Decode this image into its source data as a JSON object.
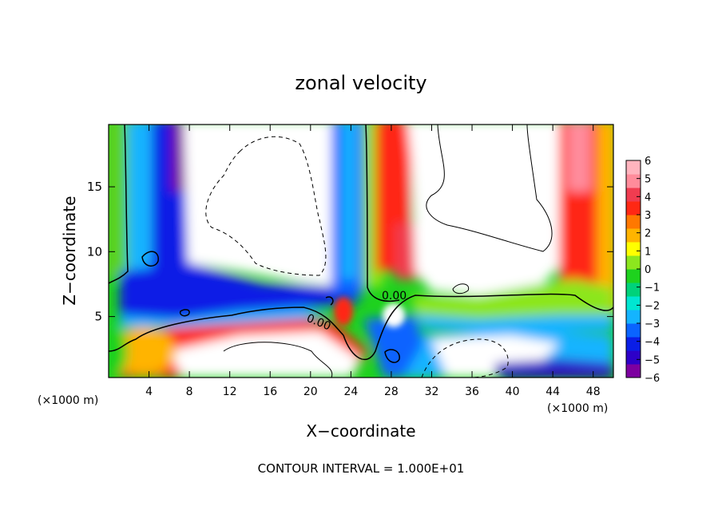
{
  "chart_data": {
    "type": "heatmap",
    "title": "zonal velocity",
    "xlabel": "X−coordinate",
    "ylabel": "Z−coordinate",
    "x_unit_left": "(×1000 m)",
    "x_unit_right": "(×1000 m)",
    "xlim": [
      0,
      50
    ],
    "ylim": [
      0.3,
      19.8
    ],
    "x_ticks": [
      {
        "v": 4,
        "label": "4"
      },
      {
        "v": 8,
        "label": "8"
      },
      {
        "v": 12,
        "label": "12"
      },
      {
        "v": 16,
        "label": "16"
      },
      {
        "v": 20,
        "label": "20"
      },
      {
        "v": 24,
        "label": "24"
      },
      {
        "v": 28,
        "label": "28"
      },
      {
        "v": 32,
        "label": "32"
      },
      {
        "v": 36,
        "label": "36"
      },
      {
        "v": 40,
        "label": "40"
      },
      {
        "v": 44,
        "label": "44"
      },
      {
        "v": 48,
        "label": "48"
      }
    ],
    "y_ticks": [
      {
        "v": 5,
        "label": "5"
      },
      {
        "v": 10,
        "label": "10"
      },
      {
        "v": 15,
        "label": "15"
      }
    ],
    "colorbar": {
      "min": -6,
      "max": 6,
      "labels": [
        "6",
        "5",
        "4",
        "3",
        "2",
        "1",
        "0",
        "−1",
        "−2",
        "−3",
        "−4",
        "−5",
        "−6"
      ],
      "colors": [
        "#7d00a0",
        "#2d00c8",
        "#0a1ee6",
        "#0a64ff",
        "#14b4ff",
        "#00e6d2",
        "#00d27a",
        "#1ed21e",
        "#8ce61e",
        "#ffff00",
        "#ffb400",
        "#ff7800",
        "#ff2814",
        "#f03c50",
        "#ff8c9b",
        "#ffb4be"
      ]
    },
    "contour_labels": [
      "0.00",
      "0.00"
    ],
    "footer": "CONTOUR INTERVAL = 1.000E+01",
    "grid": false
  }
}
